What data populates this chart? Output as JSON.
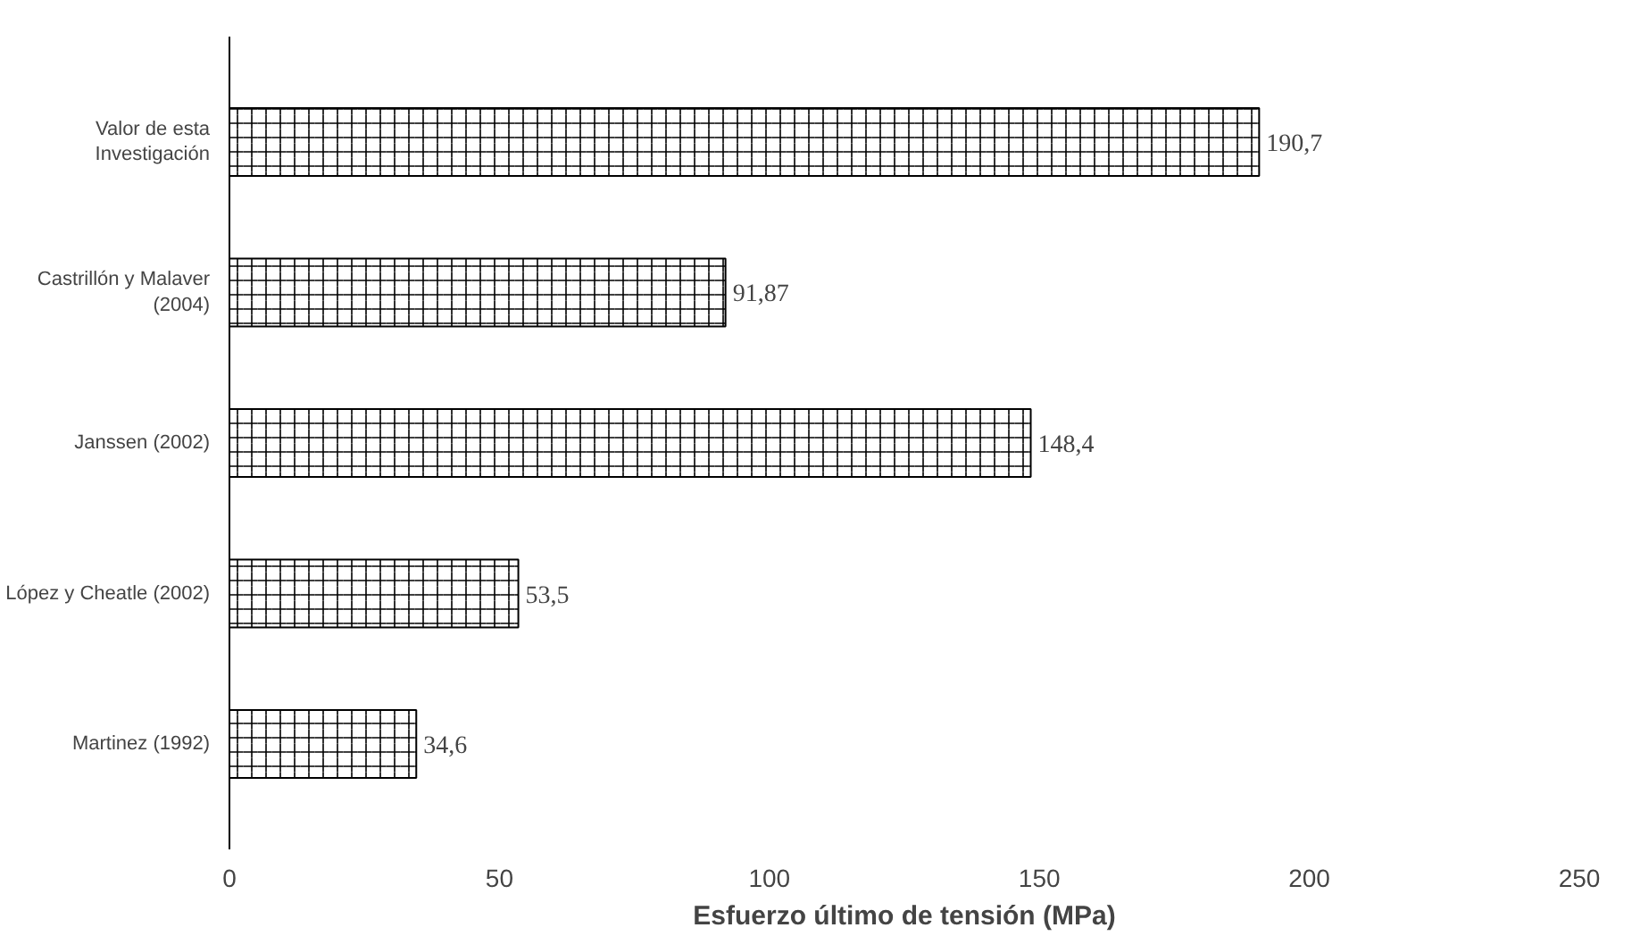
{
  "chart_data": {
    "type": "bar",
    "orientation": "horizontal",
    "xlabel": "Esfuerzo último de tensión (MPa)",
    "categories": [
      "Valor de esta\nInvestigación",
      "Castrillón y Malaver\n(2004)",
      "Janssen (2002)",
      "López y Cheatle (2002)",
      "Martinez (1992)"
    ],
    "values": [
      190.7,
      91.87,
      148.4,
      53.5,
      34.6
    ],
    "value_labels": [
      "190,7",
      "91,87",
      "148,4",
      "53,5",
      "34,6"
    ],
    "color": "#ffffff",
    "xlim": [
      0,
      250
    ],
    "xticks": [
      0,
      50,
      100,
      150,
      200,
      250
    ],
    "grid": false
  }
}
